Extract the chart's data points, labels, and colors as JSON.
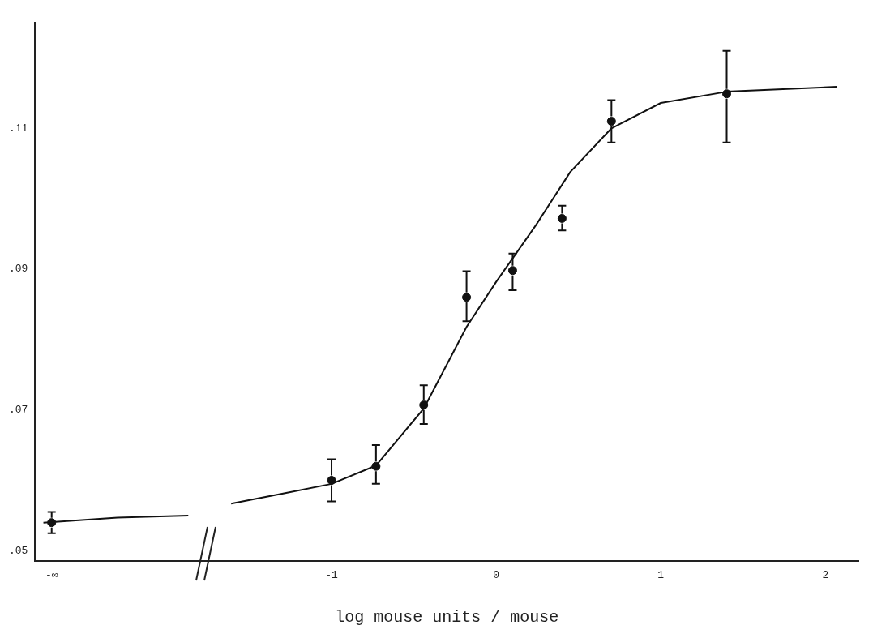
{
  "chart_data": {
    "type": "scatter",
    "xlabel": "log mouse units / mouse",
    "xlim": [
      -2.8,
      2.2
    ],
    "xticks": [
      {
        "value": -2.7,
        "label": "-∞"
      },
      -1,
      0,
      1,
      2
    ],
    "ylim": [
      0.0485,
      0.125
    ],
    "yticks": [
      {
        "value": 0.05,
        "label": ".05"
      },
      {
        "value": 0.07,
        "label": ".07"
      },
      {
        "value": 0.09,
        "label": ".09"
      },
      {
        "value": 0.11,
        "label": ".11"
      }
    ],
    "grid": false,
    "legend": false,
    "series": [
      {
        "type": "scatter",
        "color": "#111111",
        "marker": "circle",
        "x": [
          -2.7,
          -1.0,
          -0.73,
          -0.44,
          -0.18,
          0.1,
          0.4,
          0.7,
          1.4
        ],
        "values": [
          0.054,
          0.06,
          0.062,
          0.0707,
          0.086,
          0.0898,
          0.0972,
          0.111,
          0.1149
        ],
        "errors": [
          [
            0.0525,
            0.0555
          ],
          [
            0.057,
            0.063
          ],
          [
            0.0595,
            0.065
          ],
          [
            0.068,
            0.0735
          ],
          [
            0.0826,
            0.0897
          ],
          [
            0.087,
            0.0922
          ],
          [
            0.0955,
            0.099
          ],
          [
            0.108,
            0.114
          ],
          [
            0.108,
            0.121
          ]
        ]
      },
      {
        "type": "line",
        "color": "#111111",
        "marker": "none",
        "line_style": "solid",
        "x": [
          -2.75,
          -2.3,
          -1.87,
          -1.7,
          -1.61,
          -1.3,
          -1.0,
          -0.73,
          -0.44,
          -0.18,
          0,
          0.24,
          0.45,
          0.7,
          1.0,
          1.4,
          2.07
        ],
        "values": [
          0.054,
          0.0547,
          0.055,
          null,
          0.0567,
          0.0581,
          0.0595,
          0.0621,
          0.0702,
          0.0818,
          0.0882,
          0.0962,
          0.1038,
          0.11,
          0.1136,
          0.1152,
          0.1159
        ]
      }
    ]
  }
}
